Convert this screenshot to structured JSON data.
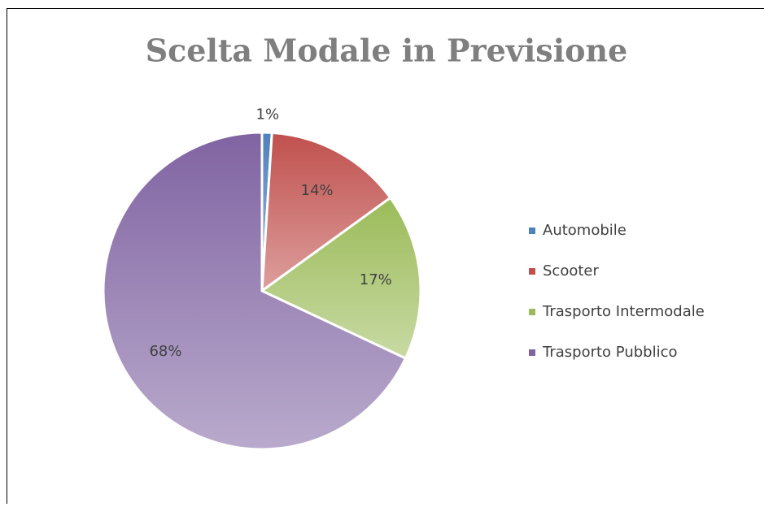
{
  "chart_data": {
    "type": "pie",
    "title": "Scelta Modale in Previsione",
    "categories": [
      "Automobile",
      "Scooter",
      "Trasporto Intermodale",
      "Trasporto Pubblico"
    ],
    "values": [
      1,
      14,
      17,
      68
    ],
    "value_labels": [
      "1%",
      "14%",
      "17%",
      "68%"
    ],
    "colors": [
      "#4f81bd",
      "#c0504d",
      "#9bbb59",
      "#8064a2"
    ],
    "legend": "right"
  }
}
